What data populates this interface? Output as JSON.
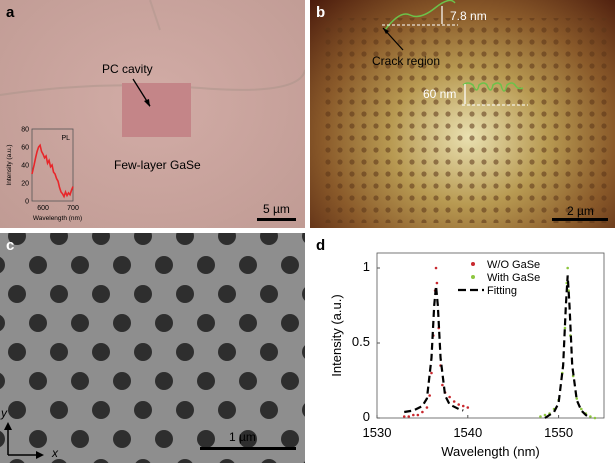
{
  "panel_a": {
    "label": "a",
    "annotation_cavity": "PC cavity",
    "annotation_material": "Few-layer GaSe",
    "scale_bar": "5 µm",
    "inset": {
      "type": "line",
      "legend": "PL",
      "xlabel": "Wavelength (nm)",
      "ylabel": "Intensity (a.u.)",
      "xlim": [
        563,
        700
      ],
      "ylim": [
        0,
        80
      ],
      "xticks": [
        "600",
        "700"
      ],
      "yticks": [
        "0",
        "20",
        "40",
        "60",
        "80"
      ],
      "color": "#e8262a",
      "x": [
        563,
        570,
        575,
        580,
        585,
        590,
        595,
        600,
        605,
        610,
        615,
        620,
        625,
        630,
        635,
        640,
        645,
        650,
        655,
        660,
        665,
        670,
        675,
        680,
        685,
        690,
        695,
        700
      ],
      "y": [
        30,
        40,
        48,
        55,
        60,
        62,
        55,
        52,
        48,
        50,
        42,
        45,
        38,
        40,
        32,
        30,
        25,
        22,
        15,
        10,
        8,
        5,
        10,
        6,
        9,
        7,
        12,
        16
      ]
    }
  },
  "panel_b": {
    "label": "b",
    "annotation_step1": "7.8 nm",
    "annotation_crack": "Crack region",
    "annotation_step2": "60 nm",
    "scale_bar": "2 µm"
  },
  "panel_c": {
    "label": "c",
    "axis_y": "y",
    "axis_x": "x",
    "scale_bar": "1 µm"
  },
  "panel_d": {
    "label": "d",
    "chart_data": {
      "type": "scatter",
      "xlabel": "Wavelength (nm)",
      "ylabel": "Intensity (a.u.)",
      "xlim": [
        1530,
        1555
      ],
      "ylim": [
        0,
        1.1
      ],
      "xticks": [
        1530,
        1540,
        1550
      ],
      "yticks": [
        0,
        0.5,
        1
      ],
      "ytick_labels": [
        "0",
        "0.5",
        "1"
      ],
      "legend_placement": "top-center",
      "series": [
        {
          "name": "W/O GaSe",
          "color": "#c8282e",
          "style": "dots",
          "x": [
            1533.0,
            1533.5,
            1534.0,
            1534.5,
            1535.0,
            1535.5,
            1535.8,
            1536.0,
            1536.2,
            1536.4,
            1536.5,
            1536.6,
            1536.8,
            1537.0,
            1537.2,
            1537.5,
            1538.0,
            1538.5,
            1539.0,
            1539.5,
            1540.0
          ],
          "y": [
            0.01,
            0.01,
            0.02,
            0.02,
            0.04,
            0.07,
            0.15,
            0.3,
            0.55,
            0.85,
            1.0,
            0.9,
            0.6,
            0.35,
            0.22,
            0.17,
            0.14,
            0.11,
            0.09,
            0.08,
            0.07
          ]
        },
        {
          "name": "With GaSe",
          "color": "#8dc63f",
          "style": "dots",
          "x": [
            1548.0,
            1548.5,
            1549.0,
            1549.5,
            1550.0,
            1550.4,
            1550.7,
            1550.9,
            1551.0,
            1551.1,
            1551.3,
            1551.6,
            1552.0,
            1552.5,
            1553.0,
            1553.5,
            1554.0
          ],
          "y": [
            0.01,
            0.02,
            0.03,
            0.06,
            0.12,
            0.3,
            0.6,
            0.9,
            1.0,
            0.85,
            0.55,
            0.28,
            0.13,
            0.06,
            0.03,
            0.01,
            0.0
          ]
        },
        {
          "name": "Fitting",
          "color": "#000000",
          "style": "dashed",
          "segments": [
            {
              "x": [
                1533,
                1534,
                1535,
                1535.5,
                1536,
                1536.3,
                1536.5,
                1536.7,
                1537,
                1537.5,
                1538,
                1539,
                1539.5
              ],
              "y": [
                0.04,
                0.05,
                0.08,
                0.13,
                0.4,
                0.75,
                0.88,
                0.75,
                0.4,
                0.15,
                0.09,
                0.06,
                0.05
              ]
            },
            {
              "x": [
                1548.5,
                1549.5,
                1550,
                1550.5,
                1550.8,
                1551,
                1551.2,
                1551.5,
                1552,
                1552.5,
                1553,
                1553.5
              ],
              "y": [
                0.0,
                0.04,
                0.1,
                0.35,
                0.75,
                0.95,
                0.75,
                0.35,
                0.12,
                0.05,
                0.02,
                0.0
              ]
            }
          ]
        }
      ]
    }
  }
}
